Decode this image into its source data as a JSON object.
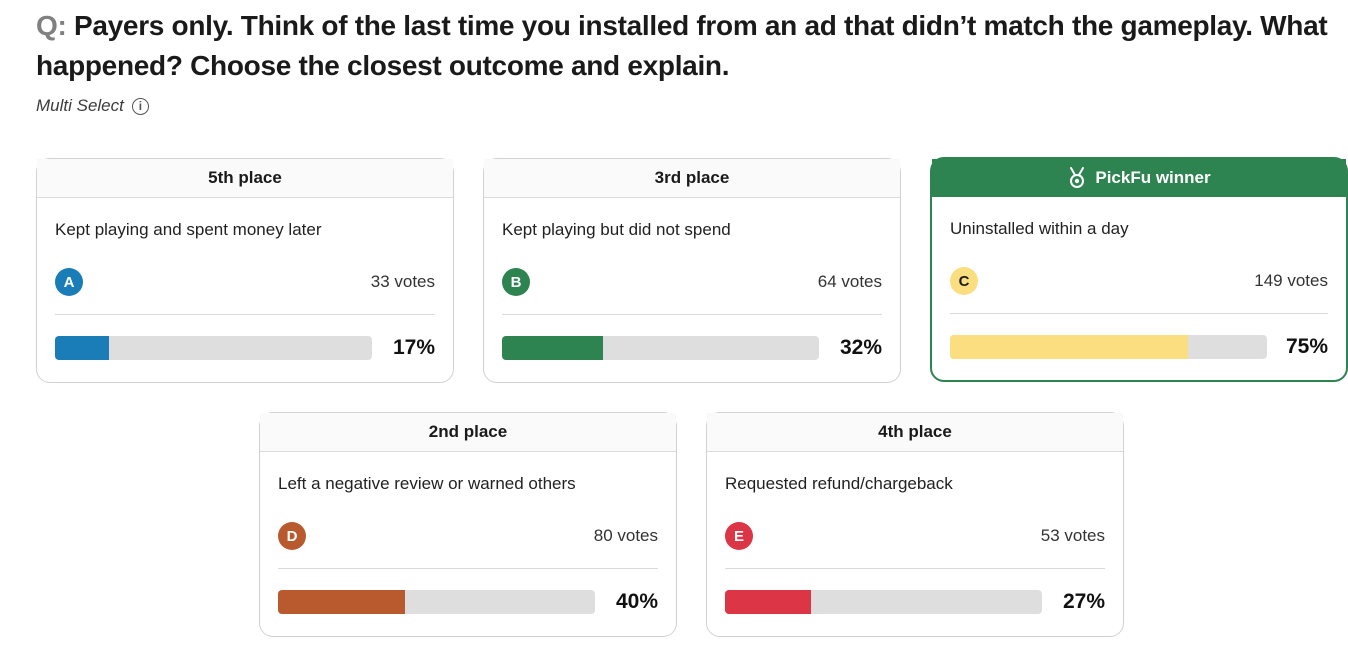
{
  "question": {
    "prefix": "Q:",
    "line1": " Payers only. Think of the last time you installed from an ad that didn’t match the gameplay. What",
    "line2": "happened? Choose the closest outcome and explain."
  },
  "question_type": "Multi Select",
  "info_icon_glyph": "i",
  "options": [
    {
      "place": "5th place",
      "text": "Kept playing and spent money later",
      "letter": "A",
      "votes": "33 votes",
      "percent": "17%",
      "fill_fraction": 0.17,
      "color": "#1a7db7",
      "winner": false
    },
    {
      "place": "3rd place",
      "text": "Kept playing but did not spend",
      "letter": "B",
      "votes": "64 votes",
      "percent": "32%",
      "fill_fraction": 0.32,
      "color": "#2e8450",
      "winner": false
    },
    {
      "place": "PickFu winner",
      "text": "Uninstalled within a day",
      "letter": "C",
      "votes": "149 votes",
      "percent": "75%",
      "fill_fraction": 0.75,
      "color": "#fade7f",
      "letter_text_color": "#1a1a1a",
      "winner": true,
      "header_icon": "medal-icon"
    },
    {
      "place": "2nd place",
      "text": "Left a negative review or warned others",
      "letter": "D",
      "votes": "80 votes",
      "percent": "40%",
      "fill_fraction": 0.4,
      "color": "#b85a2e",
      "winner": false
    },
    {
      "place": "4th place",
      "text": "Requested refund/chargeback",
      "letter": "E",
      "votes": "53 votes",
      "percent": "27%",
      "fill_fraction": 0.27,
      "color": "#dc3545",
      "winner": false
    }
  ]
}
